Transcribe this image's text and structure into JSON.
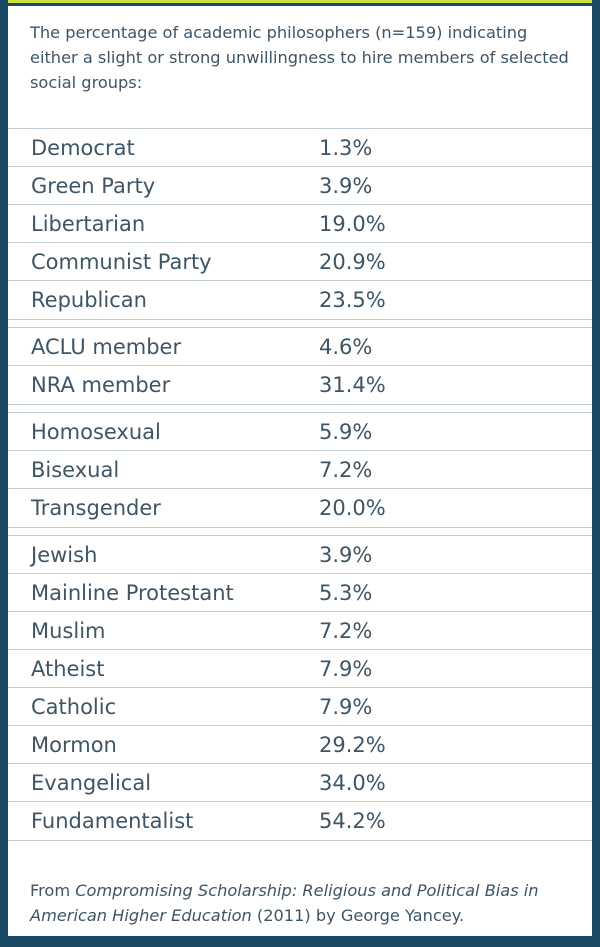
{
  "intro": "The percentage of academic philosophers (n=159) indicating either a slight or strong unwillingness to hire members of selected social groups:",
  "groups": [
    {
      "rows": [
        {
          "label": "Democrat",
          "value": "1.3%"
        },
        {
          "label": "Green Party",
          "value": "3.9%"
        },
        {
          "label": "Libertarian",
          "value": "19.0%"
        },
        {
          "label": "Communist Party",
          "value": "20.9%"
        },
        {
          "label": "Republican",
          "value": "23.5%"
        }
      ]
    },
    {
      "rows": [
        {
          "label": "ACLU member",
          "value": "4.6%"
        },
        {
          "label": "NRA member",
          "value": "31.4%"
        }
      ]
    },
    {
      "rows": [
        {
          "label": "Homosexual",
          "value": "5.9%"
        },
        {
          "label": "Bisexual",
          "value": "7.2%"
        },
        {
          "label": "Transgender",
          "value": "20.0%"
        }
      ]
    },
    {
      "rows": [
        {
          "label": "Jewish",
          "value": "3.9%"
        },
        {
          "label": "Mainline Protestant",
          "value": "5.3%"
        },
        {
          "label": "Muslim",
          "value": "7.2%"
        },
        {
          "label": "Atheist",
          "value": "7.9%"
        },
        {
          "label": "Catholic",
          "value": "7.9%"
        },
        {
          "label": "Mormon",
          "value": "29.2%"
        },
        {
          "label": "Evangelical",
          "value": "34.0%"
        },
        {
          "label": "Fundamentalist",
          "value": "54.2%"
        }
      ]
    }
  ],
  "source": {
    "prefix": "From ",
    "book": "Compromising Scholarship: Religious and Political Bias in American Higher Education",
    "suffix": " (2011) by George Yancey."
  },
  "colors": {
    "background": "#1c4a66",
    "card": "#ffffff",
    "text": "#3e5566",
    "rule": "#c3cdd4",
    "accent": "#c8df3c"
  }
}
